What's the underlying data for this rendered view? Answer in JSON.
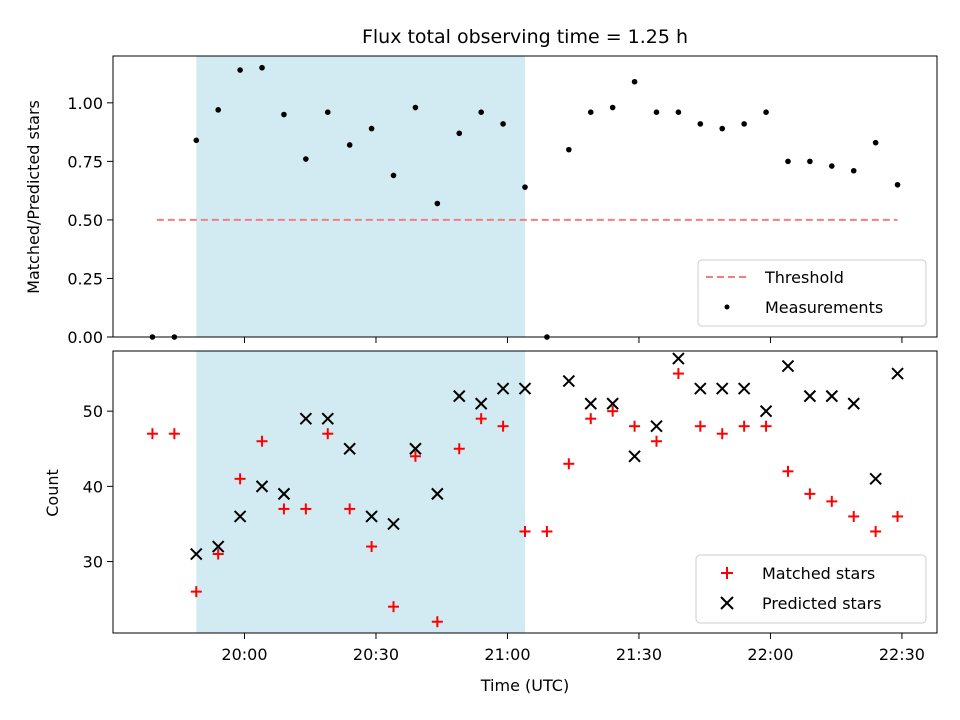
{
  "chart_data": [
    {
      "type": "scatter",
      "title": "Flux total observing time = 1.25 h",
      "xlabel": "",
      "ylabel": "Matched/Predicted stars",
      "x_tick_labels_visible": false,
      "ylim": [
        0.0,
        1.2
      ],
      "yticks": [
        "0.00",
        "0.25",
        "0.50",
        "0.75",
        "1.00"
      ],
      "yticks_values": [
        0.0,
        0.25,
        0.5,
        0.75,
        1.0
      ],
      "shaded_span": {
        "from": "19:49",
        "to": "21:04",
        "color": "#add8e6"
      },
      "legend": {
        "placement": "lower-right",
        "entries": [
          "Threshold",
          "Measurements"
        ]
      },
      "series": [
        {
          "name": "Threshold",
          "style": "dashed-line",
          "color": "#f08080",
          "x": [
            "19:40",
            "22:29"
          ],
          "y": [
            0.5,
            0.5
          ]
        },
        {
          "name": "Measurements",
          "style": "dot",
          "color": "#000000",
          "x": [
            "19:39",
            "19:44",
            "19:49",
            "19:54",
            "19:59",
            "20:04",
            "20:09",
            "20:14",
            "20:19",
            "20:24",
            "20:29",
            "20:34",
            "20:39",
            "20:44",
            "20:49",
            "20:54",
            "20:59",
            "21:04",
            "21:09",
            "21:14",
            "21:19",
            "21:24",
            "21:29",
            "21:34",
            "21:39",
            "21:44",
            "21:49",
            "21:54",
            "21:59",
            "22:04",
            "22:09",
            "22:14",
            "22:19",
            "22:24",
            "22:29"
          ],
          "y": [
            0.0,
            0.0,
            0.84,
            0.97,
            1.14,
            1.15,
            0.95,
            0.76,
            0.96,
            0.82,
            0.89,
            0.69,
            0.98,
            0.57,
            0.87,
            0.96,
            0.91,
            0.64,
            0.0,
            0.8,
            0.96,
            0.98,
            1.09,
            0.96,
            0.96,
            0.91,
            0.89,
            0.91,
            0.96,
            0.75,
            0.75,
            0.73,
            0.71,
            0.83,
            0.65
          ]
        }
      ]
    },
    {
      "type": "scatter",
      "title": "",
      "xlabel": "Time (UTC)",
      "ylabel": "Count",
      "ylim": [
        20.5,
        58
      ],
      "yticks": [
        "30",
        "40",
        "50"
      ],
      "yticks_values": [
        30,
        40,
        50
      ],
      "xlim": [
        "19:30",
        "22:38"
      ],
      "xticks": [
        "20:00",
        "20:30",
        "21:00",
        "21:30",
        "22:00",
        "22:30"
      ],
      "shaded_span": {
        "from": "19:49",
        "to": "21:04",
        "color": "#add8e6"
      },
      "legend": {
        "placement": "lower-right",
        "entries": [
          "Matched stars",
          "Predicted stars"
        ]
      },
      "series": [
        {
          "name": "Matched stars",
          "marker": "+",
          "color": "#ff0000",
          "x": [
            "19:39",
            "19:44",
            "19:49",
            "19:54",
            "19:59",
            "20:04",
            "20:09",
            "20:14",
            "20:19",
            "20:24",
            "20:29",
            "20:34",
            "20:39",
            "20:44",
            "20:49",
            "20:54",
            "20:59",
            "21:04",
            "21:09",
            "21:14",
            "21:19",
            "21:24",
            "21:29",
            "21:34",
            "21:39",
            "21:44",
            "21:49",
            "21:54",
            "21:59",
            "22:04",
            "22:09",
            "22:14",
            "22:19",
            "22:24",
            "22:29"
          ],
          "y": [
            47,
            47,
            26,
            31,
            41,
            46,
            37,
            37,
            47,
            37,
            32,
            24,
            44,
            22,
            45,
            49,
            48,
            34,
            34,
            43,
            49,
            50,
            48,
            46,
            55,
            48,
            47,
            48,
            48,
            42,
            39,
            38,
            36,
            34,
            36
          ]
        },
        {
          "name": "Predicted stars",
          "marker": "x",
          "color": "#000000",
          "x": [
            "19:49",
            "19:54",
            "19:59",
            "20:04",
            "20:09",
            "20:14",
            "20:19",
            "20:24",
            "20:29",
            "20:34",
            "20:39",
            "20:44",
            "20:49",
            "20:54",
            "20:59",
            "21:04",
            "21:14",
            "21:19",
            "21:24",
            "21:29",
            "21:34",
            "21:39",
            "21:44",
            "21:49",
            "21:54",
            "21:59",
            "22:04",
            "22:09",
            "22:14",
            "22:19",
            "22:24",
            "22:29"
          ],
          "y": [
            31,
            32,
            36,
            40,
            39,
            49,
            49,
            45,
            36,
            35,
            45,
            39,
            52,
            51,
            53,
            53,
            54,
            51,
            51,
            44,
            48,
            57,
            53,
            53,
            53,
            50,
            56,
            52,
            52,
            51,
            41,
            55
          ]
        }
      ]
    }
  ]
}
